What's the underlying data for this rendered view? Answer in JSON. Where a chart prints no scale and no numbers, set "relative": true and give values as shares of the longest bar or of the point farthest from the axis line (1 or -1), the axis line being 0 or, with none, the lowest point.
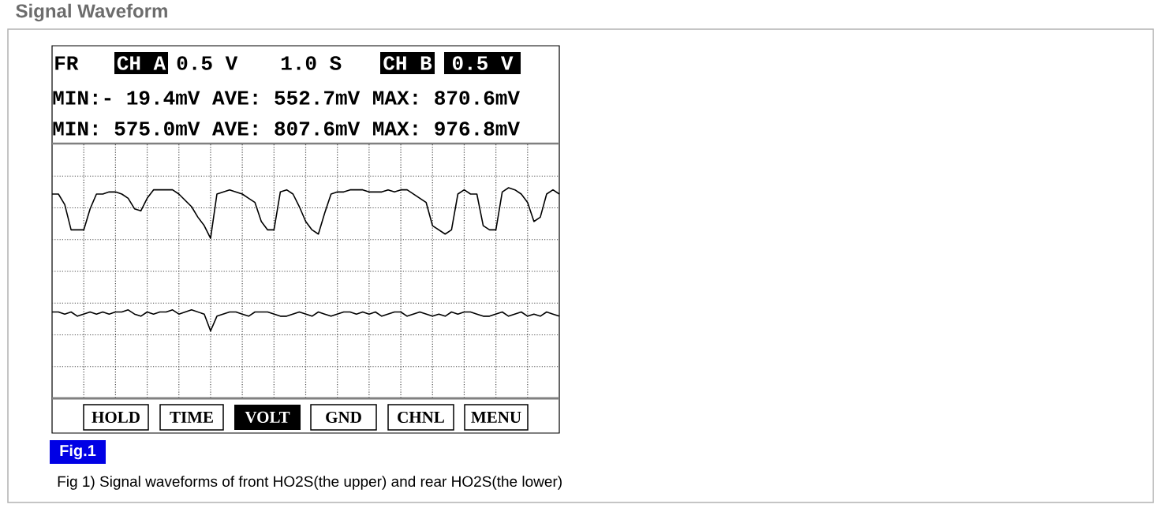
{
  "chart_data": {
    "type": "line",
    "title": "Signal Waveform",
    "relative": true,
    "grid": true,
    "annotations": [
      "FR",
      "CH A",
      "0.5 V",
      "1.0 S",
      "CH B",
      "0.5 V",
      "MIN:- 19.4mV AVE: 552.7mV MAX: 870.6mV",
      "MIN: 575.0mV AVE: 807.6mV MAX: 976.8mV",
      "HOLD",
      "TIME",
      "VOLT",
      "GND",
      "CHNL",
      "MENU",
      "Fig.1",
      "Fig 1) Signal waveforms of front HO2S(the upper) and rear HO2S(the lower)"
    ],
    "categories": [
      null,
      null,
      null,
      null,
      null,
      null,
      null,
      null,
      null,
      null,
      null,
      null,
      null,
      null,
      null,
      null,
      null,
      null,
      null,
      null,
      null,
      null,
      null,
      null,
      null,
      null,
      null,
      null,
      null,
      null,
      null,
      null,
      null,
      null,
      null,
      null,
      null,
      null,
      null,
      null,
      null,
      null,
      null,
      null,
      null,
      null,
      null,
      null,
      null,
      null,
      null,
      null,
      null,
      null,
      null,
      null,
      null,
      null,
      null,
      null,
      null,
      null,
      null,
      null,
      null,
      null,
      null,
      null,
      null,
      null,
      null,
      null,
      null,
      null,
      null,
      null,
      null,
      null,
      null,
      null,
      null
    ],
    "series": [
      {
        "color": "#000000",
        "values": [
          0.97,
          0.97,
          0.92,
          0.8,
          0.8,
          0.8,
          0.9,
          0.97,
          0.97,
          0.98,
          0.98,
          0.97,
          0.95,
          0.9,
          0.89,
          0.95,
          0.99,
          0.99,
          0.99,
          0.99,
          0.97,
          0.94,
          0.91,
          0.86,
          0.82,
          0.76,
          0.97,
          0.98,
          0.99,
          0.98,
          0.97,
          0.95,
          0.93,
          0.84,
          0.8,
          0.8,
          0.98,
          0.99,
          0.97,
          0.91,
          0.84,
          0.8,
          0.78,
          0.88,
          0.97,
          0.98,
          0.98,
          0.99,
          0.99,
          0.99,
          0.98,
          0.98,
          0.98,
          0.99,
          0.98,
          0.99,
          0.99,
          0.97,
          0.95,
          0.93,
          0.82,
          0.8,
          0.78,
          0.8,
          0.97,
          0.99,
          0.97,
          0.97,
          0.82,
          0.8,
          0.8,
          0.98,
          1,
          0.99,
          0.97,
          0.93,
          0.84,
          0.86,
          0.97,
          0.99,
          0.97
        ]
      },
      {
        "color": "#000000",
        "values": [
          0.41,
          0.41,
          0.4,
          0.41,
          0.39,
          0.4,
          0.41,
          0.4,
          0.41,
          0.4,
          0.41,
          0.41,
          0.42,
          0.4,
          0.39,
          0.41,
          0.4,
          0.41,
          0.41,
          0.42,
          0.4,
          0.41,
          0.42,
          0.41,
          0.4,
          0.32,
          0.39,
          0.4,
          0.41,
          0.41,
          0.4,
          0.39,
          0.41,
          0.41,
          0.41,
          0.4,
          0.39,
          0.39,
          0.4,
          0.41,
          0.4,
          0.39,
          0.41,
          0.4,
          0.39,
          0.4,
          0.41,
          0.41,
          0.4,
          0.41,
          0.4,
          0.41,
          0.39,
          0.4,
          0.41,
          0.41,
          0.39,
          0.4,
          0.41,
          0.4,
          0.39,
          0.4,
          0.39,
          0.41,
          0.4,
          0.41,
          0.41,
          0.4,
          0.39,
          0.39,
          0.4,
          0.41,
          0.39,
          0.4,
          0.41,
          0.39,
          0.4,
          0.39,
          0.41,
          0.4,
          0.39
        ]
      }
    ]
  }
}
